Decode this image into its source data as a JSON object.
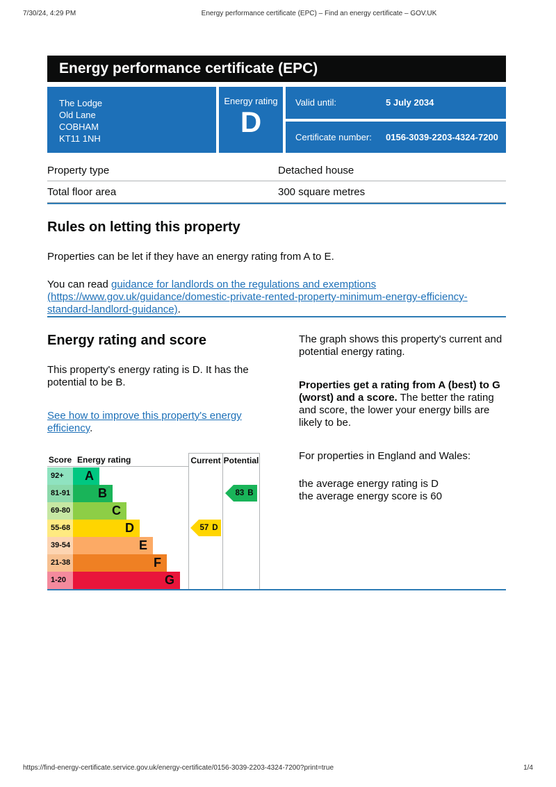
{
  "print_header": {
    "datetime": "7/30/24, 4:29 PM",
    "document_title": "Energy performance certificate (EPC) – Find an energy certificate – GOV.UK"
  },
  "banner": {
    "title": "Energy performance certificate (EPC)"
  },
  "certificate": {
    "address_lines": [
      "The Lodge",
      "Old Lane",
      "COBHAM",
      "KT11 1NH"
    ],
    "energy_rating_label": "Energy rating",
    "energy_rating": "D",
    "valid_until_label": "Valid until:",
    "valid_until_value": "5 July 2034",
    "certificate_number_label": "Certificate number:",
    "certificate_number_value": "0156-3039-2203-4324-7200"
  },
  "property_details": {
    "rows": [
      {
        "label": "Property type",
        "value": "Detached house"
      },
      {
        "label": "Total floor area",
        "value": "300 square metres"
      }
    ]
  },
  "rules_section": {
    "heading": "Rules on letting this property",
    "intro": "Properties can be let if they have an energy rating from A to E.",
    "read_prefix": "You can read ",
    "guidance_link_text": "guidance for landlords on the regulations and exemptions (https://www.gov.uk/guidance/domestic-private-rented-property-minimum-energy-efficiency-standard-landlord-guidance)",
    "read_suffix": "."
  },
  "rating_section": {
    "heading": "Energy rating and score",
    "intro": "This property's energy rating is D. It has the potential to be B.",
    "improve_link_text": "See how to improve this property's energy efficiency",
    "improve_link_suffix": ".",
    "graph_caption": "The graph shows this property's current and potential energy rating.",
    "explain_bold": "Properties get a rating from A (best) to G (worst) and a score.",
    "explain_rest": " The better the rating and score, the lower your energy bills are likely to be.",
    "regions_intro": "For properties in England and Wales:",
    "average_rating_line": "the average energy rating is D",
    "average_score_line": "the average energy score is 60"
  },
  "chart_data": {
    "type": "bar",
    "title_columns": {
      "score": "Score",
      "rating": "Energy rating",
      "current": "Current",
      "potential": "Potential"
    },
    "bands": [
      {
        "score_range": "92+",
        "letter": "A",
        "color": "#00c781",
        "tint": "#8fe3c0"
      },
      {
        "score_range": "81-91",
        "letter": "B",
        "color": "#19b459",
        "tint": "#8cd9ac"
      },
      {
        "score_range": "69-80",
        "letter": "C",
        "color": "#8dce46",
        "tint": "#c6e7a3"
      },
      {
        "score_range": "55-68",
        "letter": "D",
        "color": "#ffd500",
        "tint": "#ffea80"
      },
      {
        "score_range": "39-54",
        "letter": "E",
        "color": "#fcaa65",
        "tint": "#fdd4b2"
      },
      {
        "score_range": "21-38",
        "letter": "F",
        "color": "#ef8023",
        "tint": "#f7c091"
      },
      {
        "score_range": "1-20",
        "letter": "G",
        "color": "#e9153b",
        "tint": "#f48a9d"
      }
    ],
    "current": {
      "score": "57",
      "band": "D",
      "band_index": 3,
      "arrow_color": "#ffd500"
    },
    "potential": {
      "score": "83",
      "band": "B",
      "band_index": 1,
      "arrow_color": "#19b459"
    }
  },
  "print_footer": {
    "url": "https://find-energy-certificate.service.gov.uk/energy-certificate/0156-3039-2203-4324-7200?print=true",
    "page_indicator": "1/4"
  },
  "colors": {
    "accent_blue": "#1d70b8",
    "banner_black": "#0b0c0c",
    "divider_blue": "#2e7cb5",
    "border_grey": "#b1b4b6",
    "link_blue": "#1d70b8"
  }
}
